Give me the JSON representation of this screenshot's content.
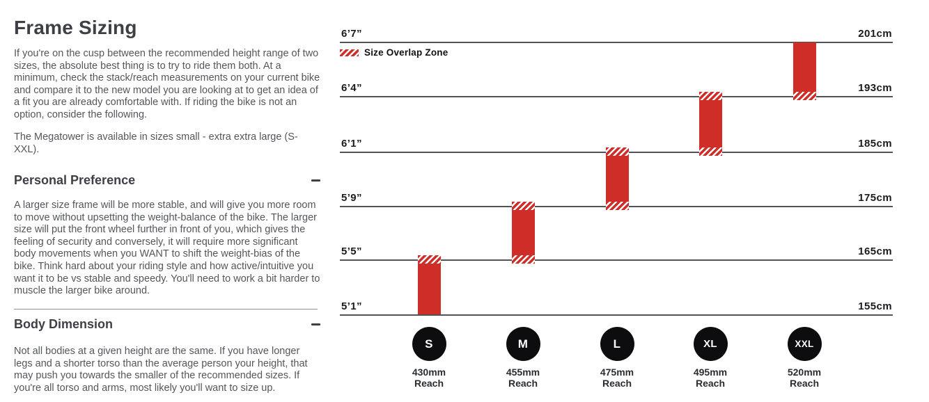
{
  "left": {
    "title": "Frame Sizing",
    "intro": "If you're on the cusp between the recommended height range of two sizes, the absolute best thing is to try to ride them both. At a minimum, check the stack/reach measurements on your current bike and compare it to the new model you are looking at to get an idea of a fit you are already comfortable with. If riding the bike is not an option, consider the following.",
    "availability": "The Megatower is available in sizes small - extra extra large (S-XXL).",
    "sections": [
      {
        "heading": "Personal Preference",
        "toggle_icon": "minus-icon",
        "body": "A larger size frame will be more stable, and will give you more room to move without upsetting the weight-balance of the bike. The larger size will put the front wheel further in front of you, which gives the feeling of security and conversely, it will require more significant body movements when you WANT to shift the weight-bias of the bike. Think hard about your riding style and how active/intuitive you want it to be vs stable and speedy. You'll need to work a bit harder to muscle the larger bike around."
      },
      {
        "heading": "Body Dimension",
        "toggle_icon": "minus-icon",
        "body": "Not all bodies at a given height are the same. If you have longer legs and a shorter torso than the average person your height, that may push you towards the smaller of the recommended sizes. If you're all torso and arms, most likely you'll want to size up."
      }
    ]
  },
  "chart": {
    "legend_label": "Size Overlap Zone",
    "reach_word": "Reach"
  },
  "chart_data": {
    "type": "bar",
    "subtype": "vertical-range-bars",
    "title": "",
    "legend": [
      {
        "label": "Size Overlap Zone",
        "style": "red-hatch"
      }
    ],
    "y_axis": {
      "ticks": [
        {
          "imperial": "6’7”",
          "metric": "201cm",
          "cm": 201
        },
        {
          "imperial": "6’4”",
          "metric": "193cm",
          "cm": 193
        },
        {
          "imperial": "6’1”",
          "metric": "185cm",
          "cm": 185
        },
        {
          "imperial": "5’9”",
          "metric": "175cm",
          "cm": 175
        },
        {
          "imperial": "5’5”",
          "metric": "165cm",
          "cm": 165
        },
        {
          "imperial": "5’1”",
          "metric": "155cm",
          "cm": 155
        }
      ],
      "range_cm": [
        155,
        201
      ],
      "grid": true
    },
    "series": [
      {
        "size": "S",
        "reach": "430mm",
        "reach_mm": 430,
        "range_cm": [
          155,
          165
        ],
        "overlap_top": true,
        "overlap_bottom": false
      },
      {
        "size": "M",
        "reach": "455mm",
        "reach_mm": 455,
        "range_cm": [
          165,
          175
        ],
        "overlap_top": true,
        "overlap_bottom": true
      },
      {
        "size": "L",
        "reach": "475mm",
        "reach_mm": 475,
        "range_cm": [
          175,
          185
        ],
        "overlap_top": true,
        "overlap_bottom": true
      },
      {
        "size": "XL",
        "reach": "495mm",
        "reach_mm": 495,
        "range_cm": [
          185,
          193
        ],
        "overlap_top": true,
        "overlap_bottom": true
      },
      {
        "size": "XXL",
        "reach": "520mm",
        "reach_mm": 520,
        "range_cm": [
          193,
          201
        ],
        "overlap_top": false,
        "overlap_bottom": true
      }
    ],
    "colors": {
      "bar": "#ce2d28",
      "hatch_bg": "#ffffff",
      "gridline": "#515356",
      "tick_label": "#1a1b1e",
      "circle": "#0d0d0f",
      "circle_text": "#ffffff"
    }
  }
}
